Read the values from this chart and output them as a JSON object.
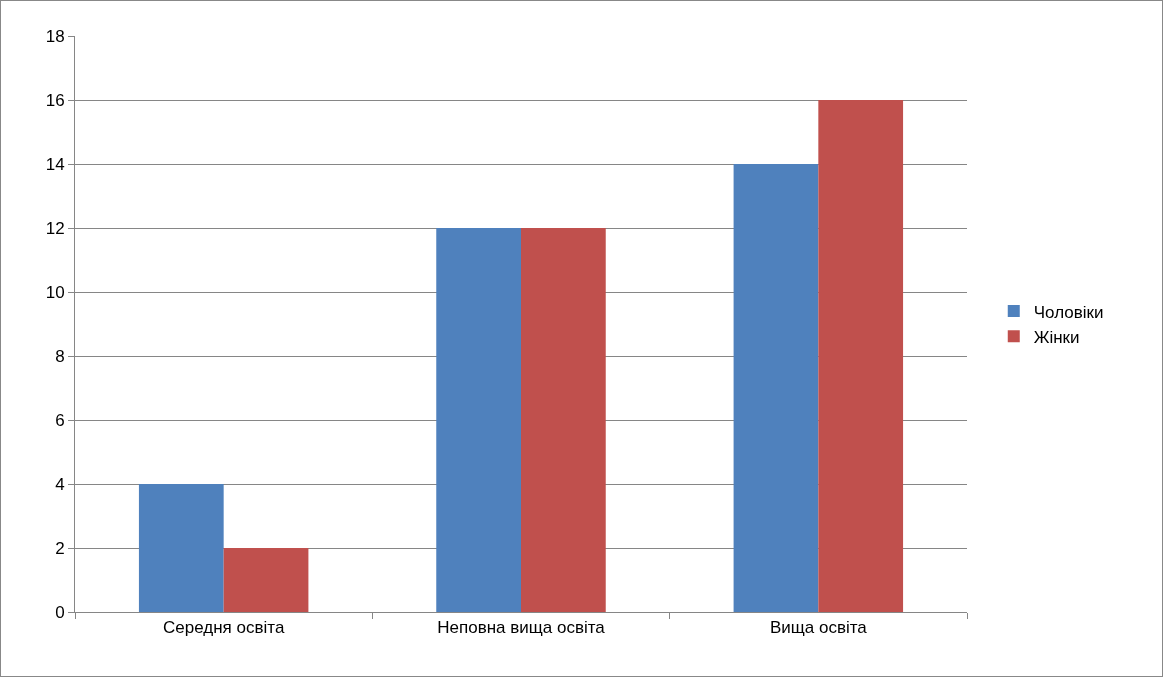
{
  "chart_data": {
    "type": "bar",
    "categories": [
      "Середня освіта",
      "Неповна вища освіта",
      "Вища освіта"
    ],
    "series": [
      {
        "name": "Чоловіки",
        "color": "#4f81bd",
        "values": [
          4,
          12,
          14
        ]
      },
      {
        "name": "Жінки",
        "color": "#c0504d",
        "values": [
          2,
          12,
          16
        ]
      }
    ],
    "ylim": [
      0,
      18
    ],
    "yticks": [
      0,
      2,
      4,
      6,
      8,
      10,
      12,
      14,
      16,
      18
    ],
    "grid": "y",
    "legend": "right"
  }
}
